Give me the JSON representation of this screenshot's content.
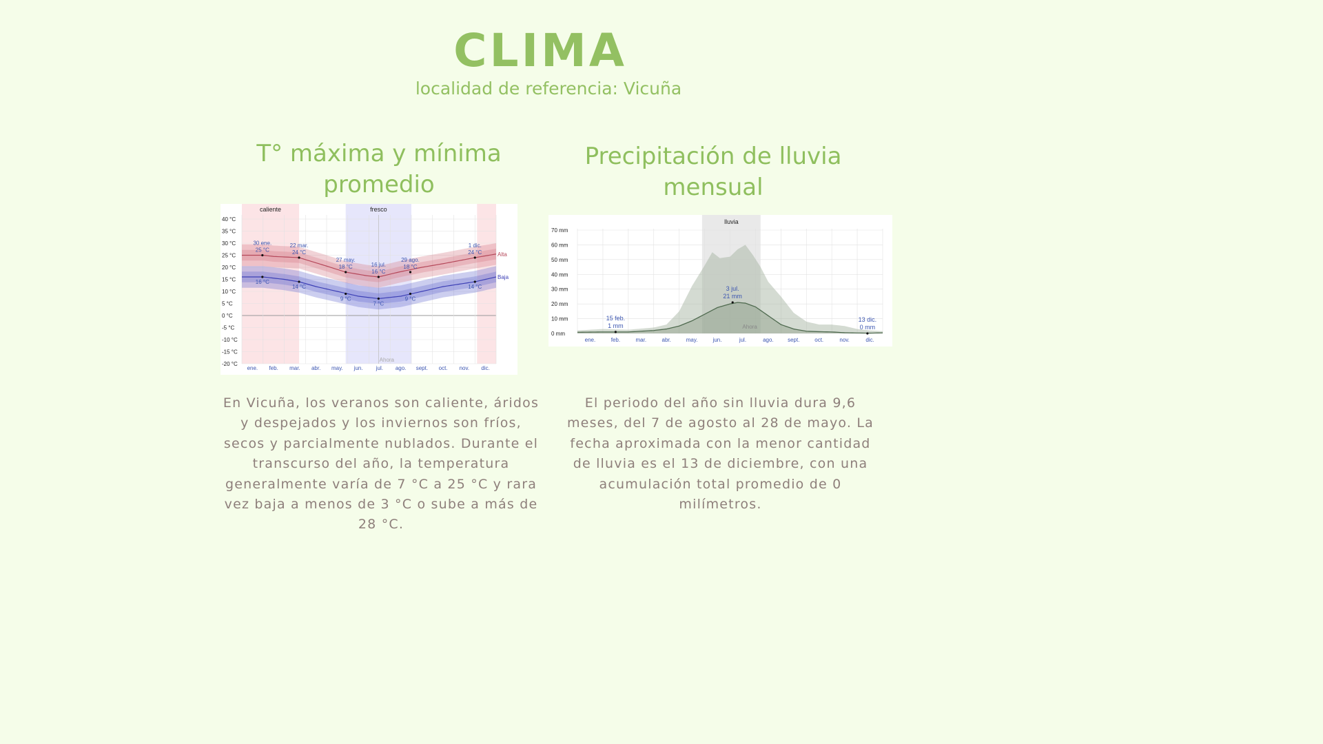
{
  "header": {
    "title": "CLIMA",
    "subtitle": "localidad de referencia: Vicuña"
  },
  "temperature": {
    "heading_line1": "T° máxima y mínima",
    "heading_line2": "promedio",
    "description": "En Vicuña, los veranos son caliente, áridos y despejados y los inviernos son fríos, secos y parcialmente nublados. Durante el transcurso del año, la temperatura generalmente varía de 7 °C a 25 °C y rara vez baja a menos de 3 °C o sube a más de 28 °C."
  },
  "rain": {
    "heading_line1": "Precipitación de lluvia",
    "heading_line2": "mensual",
    "description": "El periodo del año sin lluvia dura 9,6 meses, del 7 de agosto al 28 de mayo. La fecha aproximada con la menor cantidad de lluvia es el 13 de diciembre, con una acumulación total promedio de 0 milímetros."
  },
  "chart_data": [
    {
      "type": "line",
      "categories": [
        "ene.",
        "feb.",
        "mar.",
        "abr.",
        "may.",
        "jun.",
        "jul.",
        "ago.",
        "sept.",
        "oct.",
        "nov.",
        "dic."
      ],
      "y_tick_labels": [
        "40 °C",
        "35 °C",
        "30 °C",
        "25 °C",
        "20 °C",
        "15 °C",
        "10 °C",
        "5 °C",
        "0 °C",
        "-5 °C",
        "-10 °C",
        "-15 °C",
        "-20 °C"
      ],
      "ylim": [
        -20,
        40
      ],
      "grid": true,
      "bands": [
        {
          "label": "caliente",
          "from_month": 0.0,
          "to_month": 2.7,
          "color": "#fce4e6"
        },
        {
          "label": "fresco",
          "from_month": 4.9,
          "to_month": 8.0,
          "color": "#e6e6fb"
        },
        {
          "label": "",
          "from_month": 11.1,
          "to_month": 12.0,
          "color": "#fce4e6"
        }
      ],
      "now_label": "Ahora",
      "now_month": 6.45,
      "series": [
        {
          "name": "Alta",
          "color": "#b5485a",
          "x": [
            0.0,
            1.0,
            1.5,
            2.7,
            4.0,
            4.9,
            5.9,
            6.45,
            7.4,
            8.5,
            9.5,
            11.0,
            12.0
          ],
          "values": [
            25,
            25,
            24.5,
            24,
            20.5,
            18,
            16.5,
            16,
            18,
            20,
            21.5,
            24,
            25.5
          ]
        },
        {
          "name": "Baja",
          "color": "#3c3fb5",
          "x": [
            0.0,
            1.0,
            2.0,
            2.7,
            3.5,
            4.5,
            5.5,
            6.45,
            7.5,
            8.5,
            9.5,
            11.0,
            12.0
          ],
          "values": [
            16,
            16,
            15,
            14,
            12,
            10,
            8,
            7,
            8,
            10,
            12,
            14,
            16
          ]
        }
      ],
      "annotations": [
        {
          "date": "30 ene.",
          "value": "25 °C",
          "month": 0.97,
          "y": 25,
          "position": "above"
        },
        {
          "date": "22 mar.",
          "value": "24 °C",
          "month": 2.7,
          "y": 24,
          "position": "above"
        },
        {
          "date": "27 may.",
          "value": "18 °C",
          "month": 4.9,
          "y": 18,
          "position": "above"
        },
        {
          "date": "16 jul.",
          "value": "16 °C",
          "month": 6.45,
          "y": 16,
          "position": "above"
        },
        {
          "date": "29 ago.",
          "value": "18 °C",
          "month": 7.95,
          "y": 18,
          "position": "above"
        },
        {
          "date": "1 dic.",
          "value": "24 °C",
          "month": 11.0,
          "y": 24,
          "position": "above"
        },
        {
          "date": "",
          "value": "16 °C",
          "month": 0.97,
          "y": 16,
          "position": "below"
        },
        {
          "date": "",
          "value": "14 °C",
          "month": 2.7,
          "y": 14,
          "position": "below"
        },
        {
          "date": "",
          "value": "9 °C",
          "month": 4.9,
          "y": 9,
          "position": "below"
        },
        {
          "date": "",
          "value": "7 °C",
          "month": 6.45,
          "y": 7,
          "position": "below"
        },
        {
          "date": "",
          "value": "9 °C",
          "month": 7.95,
          "y": 9,
          "position": "below"
        },
        {
          "date": "",
          "value": "14 °C",
          "month": 11.0,
          "y": 14,
          "position": "below"
        }
      ]
    },
    {
      "type": "area",
      "categories": [
        "ene.",
        "feb.",
        "mar.",
        "abr.",
        "may.",
        "jun.",
        "jul.",
        "ago.",
        "sept.",
        "oct.",
        "nov.",
        "dic."
      ],
      "y_tick_labels": [
        "70 mm",
        "60 mm",
        "50 mm",
        "40 mm",
        "30 mm",
        "20 mm",
        "10 mm",
        "0 mm"
      ],
      "ylim": [
        0,
        70
      ],
      "grid": true,
      "bands": [
        {
          "label": "lluvia",
          "from_month": 4.9,
          "to_month": 7.2,
          "color": "#e9e9e9"
        }
      ],
      "now_label": "Ahora",
      "now_month": 6.45,
      "series": [
        {
          "name": "",
          "color": "#4f6a4f",
          "x": [
            0,
            1,
            1.5,
            2,
            2.5,
            3,
            3.5,
            4,
            4.5,
            5,
            5.5,
            6,
            6.3,
            6.6,
            7,
            7.5,
            8,
            8.5,
            9,
            9.5,
            10,
            10.5,
            11,
            11.5,
            12
          ],
          "values": [
            0.8,
            1,
            1,
            1,
            1.5,
            2,
            3,
            5,
            8.5,
            13,
            17.5,
            20,
            21,
            20.5,
            18,
            12,
            6,
            3,
            1.5,
            1.2,
            1,
            0.5,
            0.3,
            0.2,
            0.4
          ]
        }
      ],
      "percentile_band": {
        "x": [
          0,
          1,
          2,
          3,
          3.5,
          4,
          4.5,
          5,
          5.3,
          5.6,
          6,
          6.3,
          6.6,
          6.9,
          7.2,
          7.5,
          8,
          8.5,
          9,
          9.5,
          10,
          10.5,
          11,
          11.5,
          12
        ],
        "upper": [
          2,
          3,
          2.5,
          4,
          6,
          15,
          32,
          46,
          55,
          51,
          52,
          57,
          60,
          53,
          45,
          35,
          25,
          14,
          8,
          6,
          6,
          5,
          3,
          2,
          1.5
        ],
        "lower": [
          0,
          0,
          0,
          0,
          0,
          0,
          0,
          0,
          0,
          0,
          0,
          0,
          0,
          0,
          0,
          0,
          0,
          0,
          0,
          0,
          0,
          0,
          0,
          0,
          0
        ]
      },
      "annotations": [
        {
          "date": "15 feb.",
          "value": "1 mm",
          "month": 1.5,
          "y": 1,
          "position": "above"
        },
        {
          "date": "3 jul.",
          "value": "21 mm",
          "month": 6.1,
          "y": 21,
          "position": "above"
        },
        {
          "date": "13 dic.",
          "value": "0 mm",
          "month": 11.4,
          "y": 0,
          "position": "above"
        }
      ]
    }
  ]
}
